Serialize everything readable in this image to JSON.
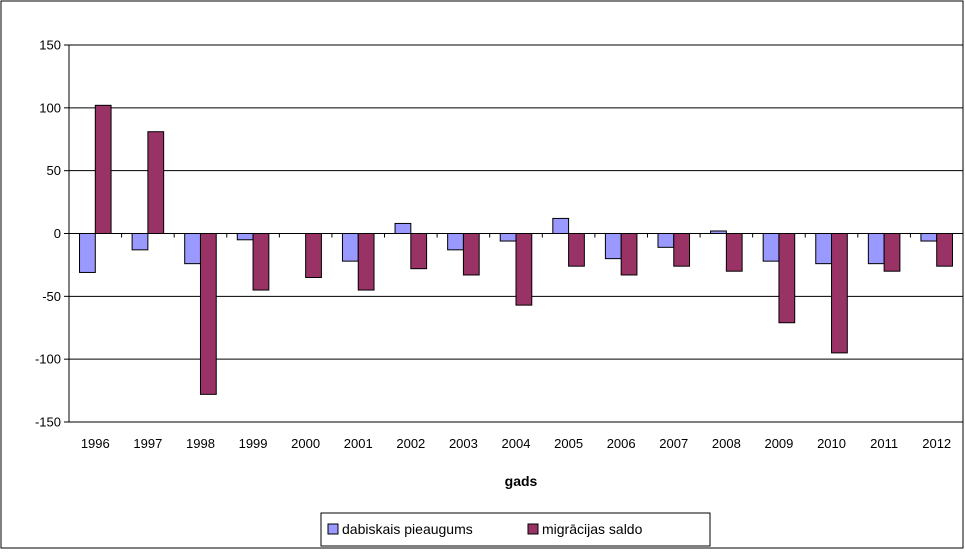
{
  "chart_data": {
    "type": "bar",
    "title": "",
    "xlabel": "gads",
    "ylabel": "",
    "ylim": [
      -150,
      150
    ],
    "yticks": [
      "150",
      "100",
      "50",
      "0",
      "-50",
      "-100",
      "-150"
    ],
    "categories": [
      "1996",
      "1997",
      "1998",
      "1999",
      "2000",
      "2001",
      "2002",
      "2003",
      "2004",
      "2005",
      "2006",
      "2007",
      "2008",
      "2009",
      "2010",
      "2011",
      "2012"
    ],
    "series": [
      {
        "name": "dabiskais pieaugums",
        "color": "#9999ff",
        "values": [
          -31,
          -13,
          -24,
          -5,
          0,
          -22,
          8,
          -13,
          -6,
          12,
          -20,
          -11,
          2,
          -22,
          -24,
          -24,
          -6
        ]
      },
      {
        "name": "migrācijas saldo",
        "color": "#993366",
        "values": [
          102,
          81,
          -128,
          -45,
          -35,
          -45,
          -28,
          -33,
          -57,
          -26,
          -33,
          -26,
          -30,
          -71,
          -95,
          -30,
          -26
        ]
      }
    ],
    "grid": true,
    "legend_position": "bottom"
  }
}
